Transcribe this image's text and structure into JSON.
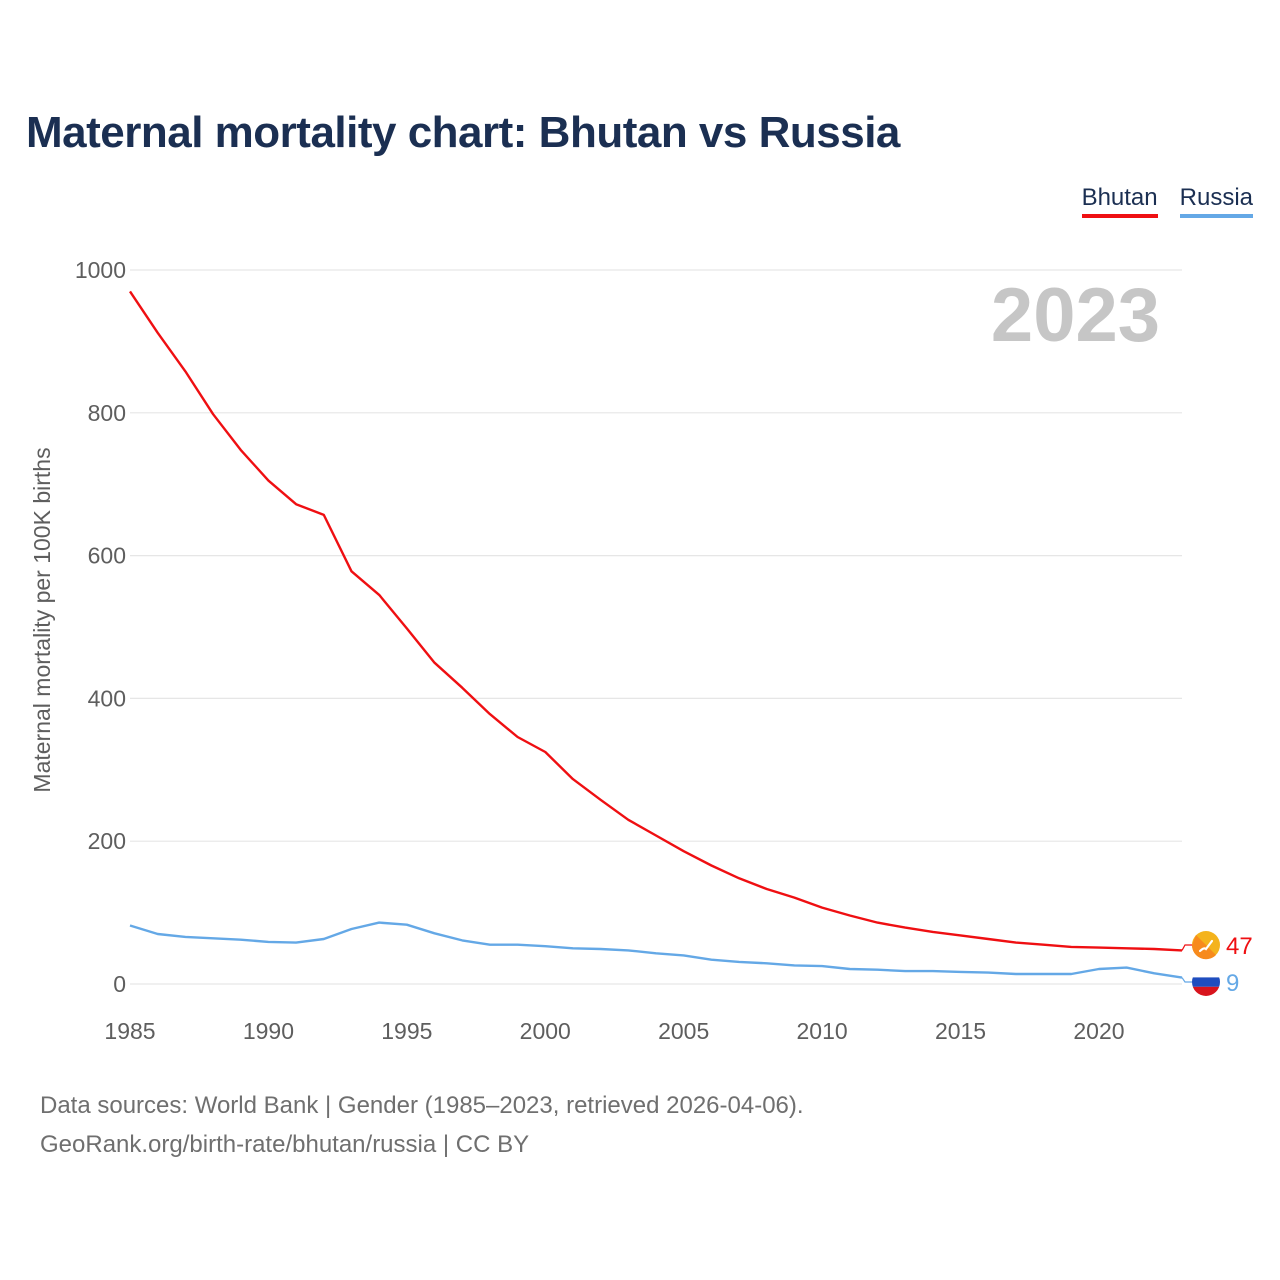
{
  "title": "Maternal mortality chart: Bhutan vs Russia",
  "legend": {
    "bhutan": "Bhutan",
    "russia": "Russia"
  },
  "footer": {
    "line1": "Data sources: World Bank | Gender (1985–2023, retrieved 2026-04-06).",
    "line2": "GeoRank.org/birth-rate/bhutan/russia | CC BY"
  },
  "colors": {
    "bhutan": "#ef0f12",
    "russia": "#64a8e6",
    "title": "#1b2f52"
  },
  "chart_data": {
    "type": "line",
    "title": "Maternal mortality chart: Bhutan vs Russia",
    "xlabel": "",
    "ylabel": "Maternal mortality per 100K births",
    "watermark_year": "2023",
    "xlim": [
      1985,
      2023
    ],
    "ylim": [
      0,
      1000
    ],
    "yticks": [
      0,
      200,
      400,
      600,
      800,
      1000
    ],
    "xticks": [
      1985,
      1990,
      1995,
      2000,
      2005,
      2010,
      2015,
      2020
    ],
    "grid": true,
    "legend_position": "top-right",
    "x": [
      1985,
      1986,
      1987,
      1988,
      1989,
      1990,
      1991,
      1992,
      1993,
      1994,
      1995,
      1996,
      1997,
      1998,
      1999,
      2000,
      2001,
      2002,
      2003,
      2004,
      2005,
      2006,
      2007,
      2008,
      2009,
      2010,
      2011,
      2012,
      2013,
      2014,
      2015,
      2016,
      2017,
      2018,
      2019,
      2020,
      2021,
      2022,
      2023
    ],
    "series": [
      {
        "name": "Bhutan",
        "color": "#ef0f12",
        "end_label": "47",
        "flag_icon": "bhutan-flag-icon",
        "values": [
          970,
          912,
          858,
          798,
          748,
          705,
          672,
          657,
          578,
          545,
          498,
          450,
          415,
          378,
          346,
          325,
          287,
          258,
          230,
          208,
          186,
          166,
          148,
          133,
          121,
          107,
          96,
          86,
          79,
          73,
          68,
          63,
          58,
          55,
          52,
          51,
          50,
          49,
          47
        ]
      },
      {
        "name": "Russia",
        "color": "#64a8e6",
        "end_label": "9",
        "flag_icon": "russia-flag-icon",
        "values": [
          82,
          70,
          66,
          64,
          62,
          59,
          58,
          63,
          77,
          86,
          83,
          71,
          61,
          55,
          55,
          53,
          50,
          49,
          47,
          43,
          40,
          34,
          31,
          29,
          26,
          25,
          21,
          20,
          18,
          18,
          17,
          16,
          14,
          14,
          14,
          21,
          23,
          15,
          9
        ]
      }
    ]
  }
}
